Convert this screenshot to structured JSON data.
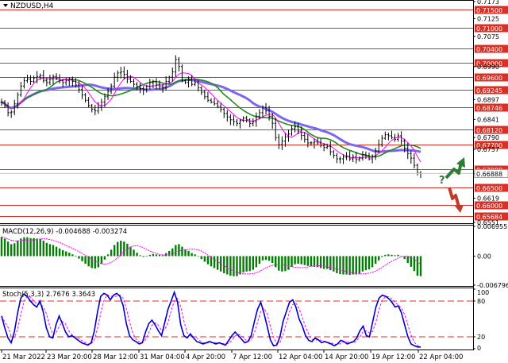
{
  "chart_data": {
    "type": "candlestick",
    "symbol": "NZDUSD",
    "timeframe": "H4",
    "title": "NZDUSD,H4",
    "x_axis_labels": [
      "21 Mar 2022",
      "23 Mar 20:00",
      "28 Mar 12:00",
      "31 Mar 04:00",
      "4 Apr 20:00",
      "7 Apr 12:00",
      "12 Apr 04:00",
      "14 Apr 20:00",
      "19 Apr 12:00",
      "22 Apr 04:00"
    ],
    "price_axis": {
      "ylim": [
        0.6551,
        0.7173
      ],
      "tick_labels": [
        "0.7173",
        "0.7125",
        "0.7075",
        "0.7040",
        "0.6990",
        "0.6960",
        "0.6925",
        "0.6897",
        "0.6875",
        "0.6841",
        "0.6812",
        "0.6790",
        "0.6757",
        "0.6700",
        "0.6688",
        "0.6650",
        "0.6619",
        "0.6600",
        "0.6568",
        "0.6551"
      ],
      "level_lines": [
        {
          "label": "0.71500",
          "value": 0.715
        },
        {
          "label": "0.71000",
          "value": 0.71
        },
        {
          "label": "0.70400",
          "value": 0.704
        },
        {
          "label": "0.70000",
          "value": 0.7
        },
        {
          "label": "0.69600",
          "value": 0.696
        },
        {
          "label": "0.69245",
          "value": 0.69245
        },
        {
          "label": "0.68746",
          "value": 0.68746
        },
        {
          "label": "0.68120",
          "value": 0.6812
        },
        {
          "label": "0.67700",
          "value": 0.677
        },
        {
          "label": "0.67000",
          "value": 0.67
        },
        {
          "label": "0.66500",
          "value": 0.665
        },
        {
          "label": "0.66000",
          "value": 0.66
        },
        {
          "label": "0.65684",
          "value": 0.65684
        }
      ],
      "current_price_label": "0.66888",
      "current_price": 0.66888
    },
    "close_series": [
      0.689,
      0.688,
      0.686,
      0.6862,
      0.6885,
      0.691,
      0.6935,
      0.695,
      0.6955,
      0.6948,
      0.6958,
      0.6962,
      0.6965,
      0.695,
      0.6945,
      0.6955,
      0.6962,
      0.6958,
      0.695,
      0.6945,
      0.695,
      0.6955,
      0.6948,
      0.6938,
      0.6925,
      0.691,
      0.6895,
      0.688,
      0.687,
      0.6865,
      0.6875,
      0.689,
      0.6905,
      0.692,
      0.6935,
      0.696,
      0.6972,
      0.6975,
      0.6968,
      0.6955,
      0.6948,
      0.694,
      0.6932,
      0.6928,
      0.6925,
      0.6935,
      0.6945,
      0.6948,
      0.694,
      0.6935,
      0.693,
      0.6948,
      0.696,
      0.6975,
      0.701,
      0.699,
      0.695,
      0.6945,
      0.6952,
      0.694,
      0.6945,
      0.693,
      0.6918,
      0.6905,
      0.6895,
      0.689,
      0.6885,
      0.6878,
      0.687,
      0.6858,
      0.6848,
      0.684,
      0.6835,
      0.683,
      0.6838,
      0.6845,
      0.684,
      0.683,
      0.6835,
      0.685,
      0.686,
      0.6875,
      0.6865,
      0.685,
      0.683,
      0.679,
      0.677,
      0.678,
      0.6792,
      0.68,
      0.6815,
      0.682,
      0.6808,
      0.6796,
      0.6785,
      0.6775,
      0.6775,
      0.6778,
      0.6775,
      0.6768,
      0.6762,
      0.6765,
      0.675,
      0.674,
      0.673,
      0.673,
      0.6735,
      0.6738,
      0.673,
      0.6735,
      0.6728,
      0.6732,
      0.6742,
      0.674,
      0.673,
      0.6738,
      0.6752,
      0.677,
      0.6788,
      0.6798,
      0.6795,
      0.679,
      0.6785,
      0.6795,
      0.678,
      0.676,
      0.6745,
      0.6732,
      0.6712,
      0.669,
      0.66888
    ],
    "moving_averages": [
      {
        "color": "#7b68ee",
        "period": "slow"
      },
      {
        "color": "#228b22",
        "period": "medium"
      },
      {
        "color": "#ff00ff",
        "period": "fast"
      }
    ],
    "macd": {
      "label": "MACD(12,26,9) -0.004688 -0.003274",
      "ylim": [
        -0.006796,
        0.006955
      ],
      "tick_labels": [
        "0.006955",
        "0.00",
        "-0.006796"
      ],
      "histogram": [
        0.0045,
        0.0041,
        0.0034,
        0.0028,
        0.003,
        0.0036,
        0.0041,
        0.0044,
        0.0044,
        0.0042,
        0.0042,
        0.0041,
        0.004,
        0.0036,
        0.0031,
        0.0028,
        0.0026,
        0.0022,
        0.0018,
        0.0014,
        0.0011,
        0.0008,
        0.0004,
        -0.0001,
        -0.0006,
        -0.0012,
        -0.0018,
        -0.0024,
        -0.0028,
        -0.0029,
        -0.0026,
        -0.0018,
        -0.0008,
        0.0004,
        0.0015,
        0.0026,
        0.0033,
        0.0036,
        0.0034,
        0.0029,
        0.0022,
        0.0015,
        0.0008,
        0.0002,
        -0.0002,
        -0.0001,
        0.0003,
        0.0005,
        0.0004,
        0.0003,
        0.0002,
        0.0007,
        0.0012,
        0.0018,
        0.0026,
        0.0028,
        0.0022,
        0.0016,
        0.0012,
        0.0007,
        0.0004,
        -0.0001,
        -0.0007,
        -0.0013,
        -0.0019,
        -0.0024,
        -0.0028,
        -0.0032,
        -0.0036,
        -0.004,
        -0.0043,
        -0.0046,
        -0.0047,
        -0.0047,
        -0.0043,
        -0.0038,
        -0.0036,
        -0.0035,
        -0.0032,
        -0.0026,
        -0.0018,
        -0.001,
        -0.0009,
        -0.0011,
        -0.0016,
        -0.0026,
        -0.0034,
        -0.0036,
        -0.0035,
        -0.0032,
        -0.0025,
        -0.0019,
        -0.0018,
        -0.0019,
        -0.0021,
        -0.0023,
        -0.0024,
        -0.0025,
        -0.0026,
        -0.0028,
        -0.003,
        -0.003,
        -0.0033,
        -0.0036,
        -0.004,
        -0.0042,
        -0.0043,
        -0.0043,
        -0.0044,
        -0.0043,
        -0.0043,
        -0.0041,
        -0.0036,
        -0.0033,
        -0.0031,
        -0.0026,
        -0.0018,
        -0.001,
        -0.0002,
        0.0003,
        0.0004,
        0.0003,
        0.0002,
        0.0003,
        0.0,
        -0.0007,
        -0.0016,
        -0.0025,
        -0.0035,
        -0.0046,
        -0.0047
      ],
      "hist_color": "#008000",
      "signal_color": "#ff00ff"
    },
    "stochastic": {
      "label": "Stoch(5,3,3) 2.7676 3.3643",
      "ylim": [
        0,
        100
      ],
      "tick_labels": [
        "100",
        "80",
        "20",
        "0"
      ],
      "levels": [
        80,
        20
      ],
      "main": [
        55,
        35,
        18,
        10,
        28,
        60,
        85,
        92,
        88,
        80,
        74,
        70,
        80,
        62,
        35,
        20,
        18,
        40,
        55,
        42,
        28,
        20,
        22,
        18,
        14,
        10,
        8,
        6,
        10,
        30,
        62,
        88,
        93,
        90,
        82,
        90,
        93,
        88,
        72,
        42,
        22,
        15,
        12,
        8,
        10,
        28,
        42,
        48,
        40,
        30,
        22,
        44,
        66,
        80,
        95,
        78,
        40,
        22,
        18,
        25,
        18,
        12,
        10,
        8,
        10,
        12,
        10,
        8,
        10,
        8,
        6,
        14,
        22,
        28,
        22,
        16,
        10,
        12,
        22,
        45,
        66,
        78,
        60,
        38,
        15,
        5,
        6,
        20,
        46,
        62,
        78,
        82,
        70,
        50,
        38,
        22,
        14,
        12,
        18,
        15,
        10,
        12,
        10,
        8,
        5,
        8,
        14,
        12,
        8,
        10,
        12,
        18,
        30,
        38,
        22,
        20,
        45,
        70,
        85,
        90,
        88,
        84,
        78,
        70,
        72,
        60,
        40,
        20,
        8,
        5,
        3,
        3
      ],
      "line_color": "#0000cd",
      "signal_color": "#ff00ff",
      "level_color": "#e0301e"
    },
    "annotations": [
      {
        "text": "?",
        "color": "#2e7d32"
      }
    ],
    "arrows": [
      {
        "direction": "up",
        "color": "#2e7d32"
      },
      {
        "direction": "down",
        "color": "#c0392b"
      }
    ]
  }
}
